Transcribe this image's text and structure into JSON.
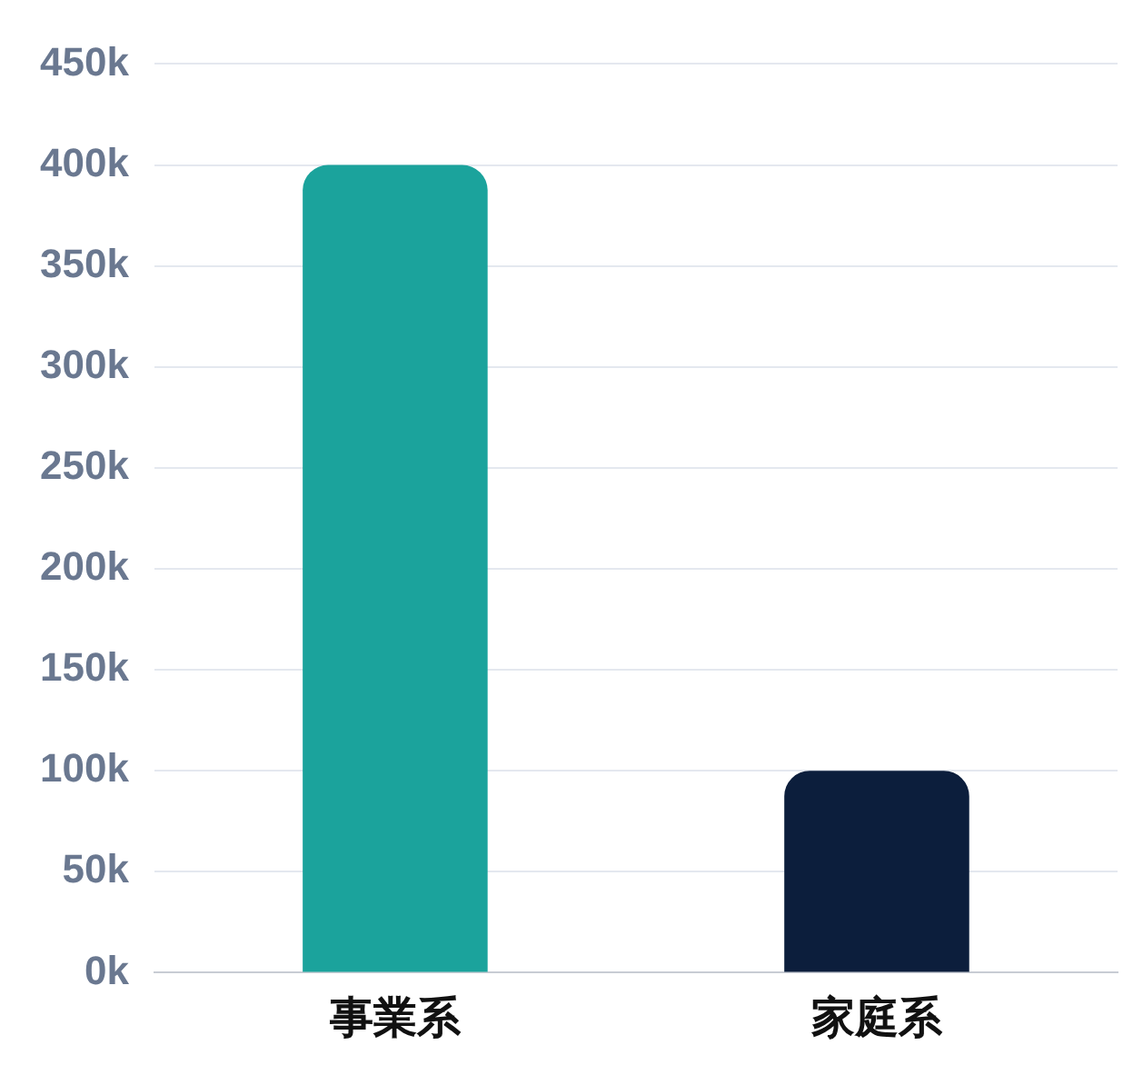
{
  "chart_data": {
    "type": "bar",
    "categories": [
      "事業系",
      "家庭系"
    ],
    "values": [
      400000,
      100000
    ],
    "colors": [
      "#1ba39c",
      "#0c1e3c"
    ],
    "ylim": [
      0,
      450000
    ],
    "yticks": [
      {
        "value": 0,
        "label": "0k"
      },
      {
        "value": 50000,
        "label": "50k"
      },
      {
        "value": 100000,
        "label": "100k"
      },
      {
        "value": 150000,
        "label": "150k"
      },
      {
        "value": 200000,
        "label": "200k"
      },
      {
        "value": 250000,
        "label": "250k"
      },
      {
        "value": 300000,
        "label": "300k"
      },
      {
        "value": 350000,
        "label": "350k"
      },
      {
        "value": 400000,
        "label": "400k"
      },
      {
        "value": 450000,
        "label": "450k"
      }
    ],
    "grid": "y",
    "legend": false
  }
}
